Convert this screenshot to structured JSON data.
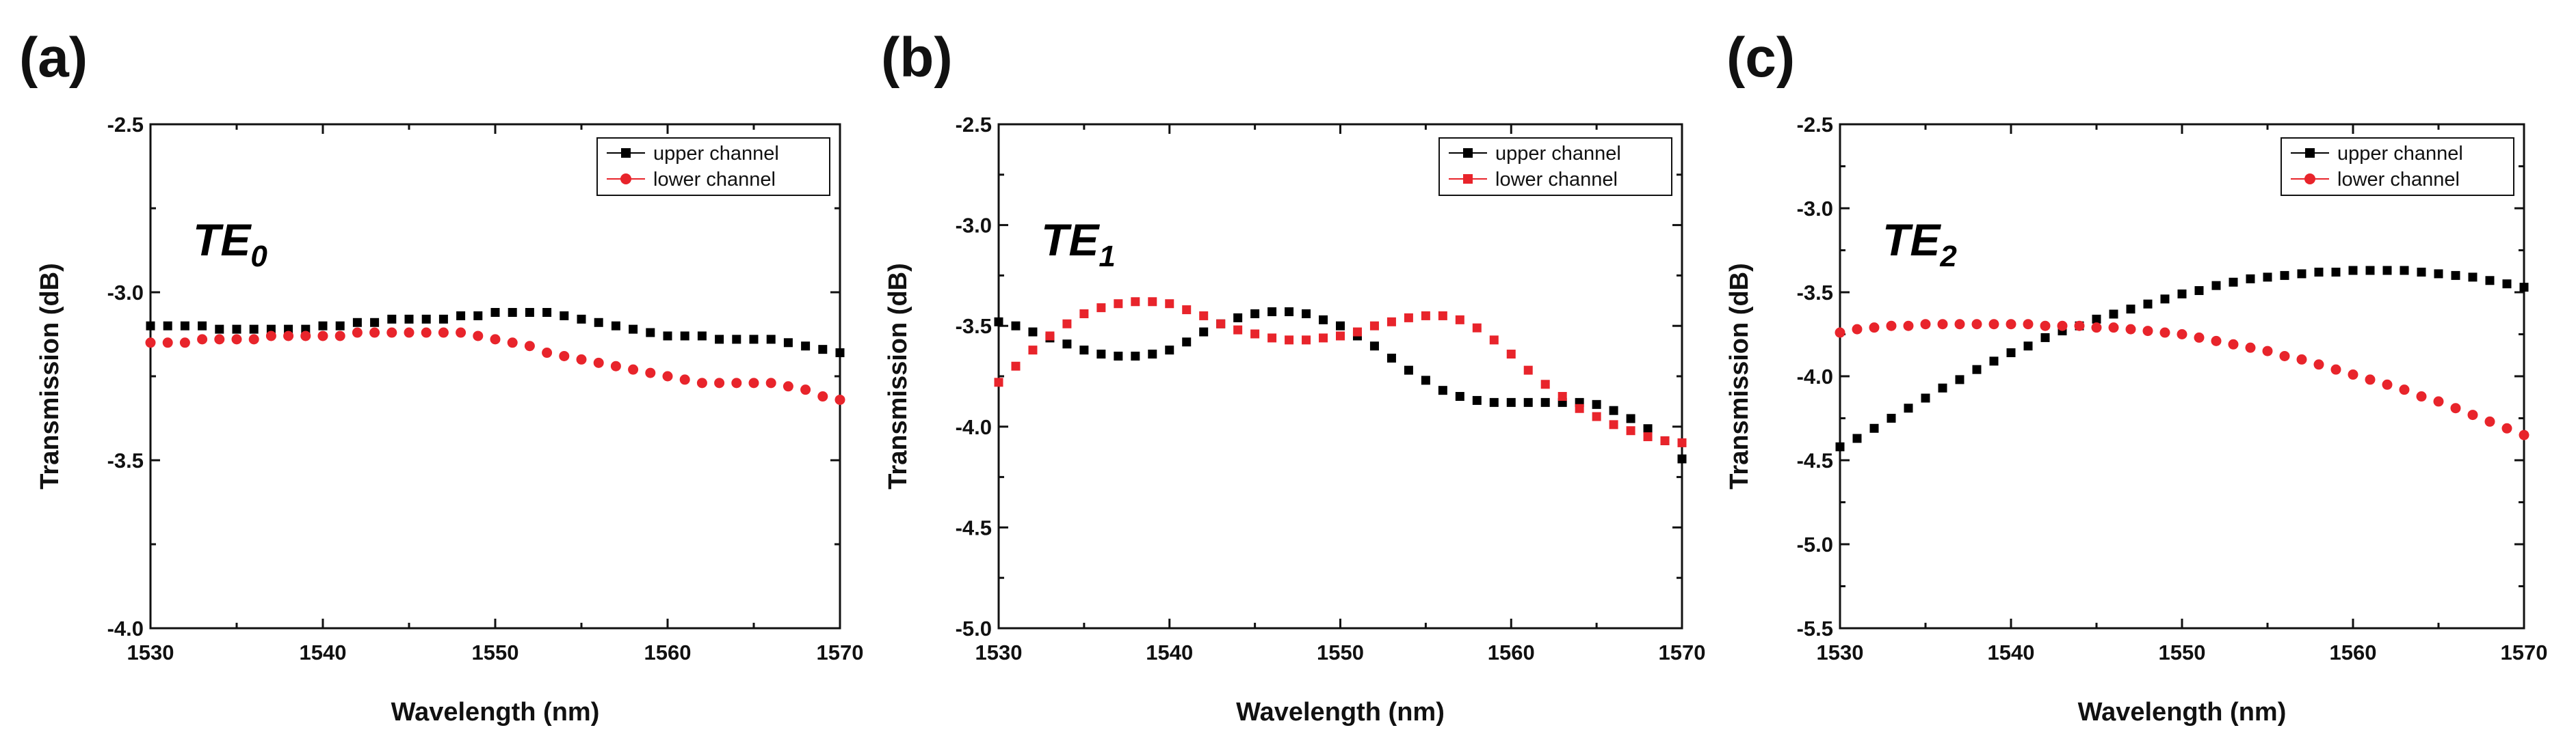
{
  "figure": {
    "series_colors": {
      "upper channel": "#000000",
      "lower channel": "#e8242b"
    }
  },
  "chart_data": [
    {
      "panel_label": "(a)",
      "type": "scatter",
      "mode_label": {
        "base": "TE",
        "sub": "0"
      },
      "xlabel": "Wavelength (nm)",
      "ylabel": "Transmission (dB)",
      "xlim": [
        1530,
        1570
      ],
      "ylim": [
        -4.0,
        -2.5
      ],
      "xticks": [
        1530,
        1540,
        1550,
        1560,
        1570
      ],
      "yticks": [
        -2.5,
        -3.0,
        -3.5,
        -4.0
      ],
      "ytick_labels": [
        "-2.5",
        "-3.0",
        "-3.5",
        "-4.0"
      ],
      "legend": [
        "upper channel",
        "lower channel"
      ],
      "legend_loc": "top-right",
      "series": [
        {
          "name": "upper channel",
          "color": "#000000",
          "marker": "square",
          "x": [
            1530,
            1531,
            1532,
            1533,
            1534,
            1535,
            1536,
            1537,
            1538,
            1539,
            1540,
            1541,
            1542,
            1543,
            1544,
            1545,
            1546,
            1547,
            1548,
            1549,
            1550,
            1551,
            1552,
            1553,
            1554,
            1555,
            1556,
            1557,
            1558,
            1559,
            1560,
            1561,
            1562,
            1563,
            1564,
            1565,
            1566,
            1567,
            1568,
            1569,
            1570
          ],
          "y": [
            -3.1,
            -3.1,
            -3.1,
            -3.1,
            -3.11,
            -3.11,
            -3.11,
            -3.11,
            -3.11,
            -3.11,
            -3.1,
            -3.1,
            -3.09,
            -3.09,
            -3.08,
            -3.08,
            -3.08,
            -3.08,
            -3.07,
            -3.07,
            -3.06,
            -3.06,
            -3.06,
            -3.06,
            -3.07,
            -3.08,
            -3.09,
            -3.1,
            -3.11,
            -3.12,
            -3.13,
            -3.13,
            -3.13,
            -3.14,
            -3.14,
            -3.14,
            -3.14,
            -3.15,
            -3.16,
            -3.17,
            -3.18
          ]
        },
        {
          "name": "lower channel",
          "color": "#e8242b",
          "marker": "circle",
          "x": [
            1530,
            1531,
            1532,
            1533,
            1534,
            1535,
            1536,
            1537,
            1538,
            1539,
            1540,
            1541,
            1542,
            1543,
            1544,
            1545,
            1546,
            1547,
            1548,
            1549,
            1550,
            1551,
            1552,
            1553,
            1554,
            1555,
            1556,
            1557,
            1558,
            1559,
            1560,
            1561,
            1562,
            1563,
            1564,
            1565,
            1566,
            1567,
            1568,
            1569,
            1570
          ],
          "y": [
            -3.15,
            -3.15,
            -3.15,
            -3.14,
            -3.14,
            -3.14,
            -3.14,
            -3.13,
            -3.13,
            -3.13,
            -3.13,
            -3.13,
            -3.12,
            -3.12,
            -3.12,
            -3.12,
            -3.12,
            -3.12,
            -3.12,
            -3.13,
            -3.14,
            -3.15,
            -3.16,
            -3.18,
            -3.19,
            -3.2,
            -3.21,
            -3.22,
            -3.23,
            -3.24,
            -3.25,
            -3.26,
            -3.27,
            -3.27,
            -3.27,
            -3.27,
            -3.27,
            -3.28,
            -3.29,
            -3.31,
            -3.32
          ]
        }
      ]
    },
    {
      "panel_label": "(b)",
      "type": "scatter",
      "mode_label": {
        "base": "TE",
        "sub": "1"
      },
      "xlabel": "Wavelength (nm)",
      "ylabel": "Transmission (dB)",
      "xlim": [
        1530,
        1570
      ],
      "ylim": [
        -5.0,
        -2.5
      ],
      "xticks": [
        1530,
        1540,
        1550,
        1560,
        1570
      ],
      "yticks": [
        -2.5,
        -3.0,
        -3.5,
        -4.0,
        -4.5,
        -5.0
      ],
      "ytick_labels": [
        "-2.5",
        "-3.0",
        "-3.5",
        "-4.0",
        "-4.5",
        "-5.0"
      ],
      "legend": [
        "upper channel",
        "lower channel"
      ],
      "legend_loc": "top-right",
      "series": [
        {
          "name": "upper channel",
          "color": "#000000",
          "marker": "square",
          "x": [
            1530,
            1531,
            1532,
            1533,
            1534,
            1535,
            1536,
            1537,
            1538,
            1539,
            1540,
            1541,
            1542,
            1543,
            1544,
            1545,
            1546,
            1547,
            1548,
            1549,
            1550,
            1551,
            1552,
            1553,
            1554,
            1555,
            1556,
            1557,
            1558,
            1559,
            1560,
            1561,
            1562,
            1563,
            1564,
            1565,
            1566,
            1567,
            1568,
            1569,
            1570
          ],
          "y": [
            -3.48,
            -3.5,
            -3.53,
            -3.56,
            -3.59,
            -3.62,
            -3.64,
            -3.65,
            -3.65,
            -3.64,
            -3.62,
            -3.58,
            -3.53,
            -3.49,
            -3.46,
            -3.44,
            -3.43,
            -3.43,
            -3.44,
            -3.47,
            -3.5,
            -3.55,
            -3.6,
            -3.66,
            -3.72,
            -3.77,
            -3.82,
            -3.85,
            -3.87,
            -3.88,
            -3.88,
            -3.88,
            -3.88,
            -3.88,
            -3.88,
            -3.89,
            -3.92,
            -3.96,
            -4.01,
            -4.07,
            -4.16
          ]
        },
        {
          "name": "lower channel",
          "color": "#e8242b",
          "marker": "square",
          "x": [
            1530,
            1531,
            1532,
            1533,
            1534,
            1535,
            1536,
            1537,
            1538,
            1539,
            1540,
            1541,
            1542,
            1543,
            1544,
            1545,
            1546,
            1547,
            1548,
            1549,
            1550,
            1551,
            1552,
            1553,
            1554,
            1555,
            1556,
            1557,
            1558,
            1559,
            1560,
            1561,
            1562,
            1563,
            1564,
            1565,
            1566,
            1567,
            1568,
            1569,
            1570
          ],
          "y": [
            -3.78,
            -3.7,
            -3.62,
            -3.55,
            -3.49,
            -3.44,
            -3.41,
            -3.39,
            -3.38,
            -3.38,
            -3.39,
            -3.42,
            -3.45,
            -3.49,
            -3.52,
            -3.54,
            -3.56,
            -3.57,
            -3.57,
            -3.56,
            -3.55,
            -3.53,
            -3.5,
            -3.48,
            -3.46,
            -3.45,
            -3.45,
            -3.47,
            -3.51,
            -3.57,
            -3.64,
            -3.72,
            -3.79,
            -3.85,
            -3.91,
            -3.95,
            -3.99,
            -4.02,
            -4.05,
            -4.07,
            -4.08
          ]
        }
      ]
    },
    {
      "panel_label": "(c)",
      "type": "scatter",
      "mode_label": {
        "base": "TE",
        "sub": "2"
      },
      "xlabel": "Wavelength (nm)",
      "ylabel": "Transmission (dB)",
      "xlim": [
        1530,
        1570
      ],
      "ylim": [
        -5.5,
        -2.5
      ],
      "xticks": [
        1530,
        1540,
        1550,
        1560,
        1570
      ],
      "yticks": [
        -2.5,
        -3.0,
        -3.5,
        -4.0,
        -4.5,
        -5.0,
        -5.5
      ],
      "ytick_labels": [
        "-2.5",
        "-3.0",
        "-3.5",
        "-4.0",
        "-4.5",
        "-5.0",
        "-5.5"
      ],
      "legend": [
        "upper channel",
        "lower channel"
      ],
      "legend_loc": "top-right",
      "series": [
        {
          "name": "upper channel",
          "color": "#000000",
          "marker": "square",
          "x": [
            1530,
            1531,
            1532,
            1533,
            1534,
            1535,
            1536,
            1537,
            1538,
            1539,
            1540,
            1541,
            1542,
            1543,
            1544,
            1545,
            1546,
            1547,
            1548,
            1549,
            1550,
            1551,
            1552,
            1553,
            1554,
            1555,
            1556,
            1557,
            1558,
            1559,
            1560,
            1561,
            1562,
            1563,
            1564,
            1565,
            1566,
            1567,
            1568,
            1569,
            1570
          ],
          "y": [
            -4.42,
            -4.37,
            -4.31,
            -4.25,
            -4.19,
            -4.13,
            -4.07,
            -4.02,
            -3.96,
            -3.91,
            -3.86,
            -3.82,
            -3.77,
            -3.73,
            -3.7,
            -3.66,
            -3.63,
            -3.6,
            -3.57,
            -3.54,
            -3.51,
            -3.49,
            -3.46,
            -3.44,
            -3.42,
            -3.41,
            -3.4,
            -3.39,
            -3.38,
            -3.38,
            -3.37,
            -3.37,
            -3.37,
            -3.37,
            -3.38,
            -3.39,
            -3.4,
            -3.41,
            -3.43,
            -3.45,
            -3.47
          ]
        },
        {
          "name": "lower channel",
          "color": "#e8242b",
          "marker": "circle",
          "x": [
            1530,
            1531,
            1532,
            1533,
            1534,
            1535,
            1536,
            1537,
            1538,
            1539,
            1540,
            1541,
            1542,
            1543,
            1544,
            1545,
            1546,
            1547,
            1548,
            1549,
            1550,
            1551,
            1552,
            1553,
            1554,
            1555,
            1556,
            1557,
            1558,
            1559,
            1560,
            1561,
            1562,
            1563,
            1564,
            1565,
            1566,
            1567,
            1568,
            1569,
            1570
          ],
          "y": [
            -3.74,
            -3.72,
            -3.71,
            -3.7,
            -3.7,
            -3.69,
            -3.69,
            -3.69,
            -3.69,
            -3.69,
            -3.69,
            -3.69,
            -3.7,
            -3.7,
            -3.7,
            -3.71,
            -3.71,
            -3.72,
            -3.73,
            -3.74,
            -3.75,
            -3.77,
            -3.79,
            -3.81,
            -3.83,
            -3.85,
            -3.88,
            -3.9,
            -3.93,
            -3.96,
            -3.99,
            -4.02,
            -4.05,
            -4.08,
            -4.12,
            -4.15,
            -4.19,
            -4.23,
            -4.27,
            -4.31,
            -4.35
          ]
        }
      ]
    }
  ]
}
